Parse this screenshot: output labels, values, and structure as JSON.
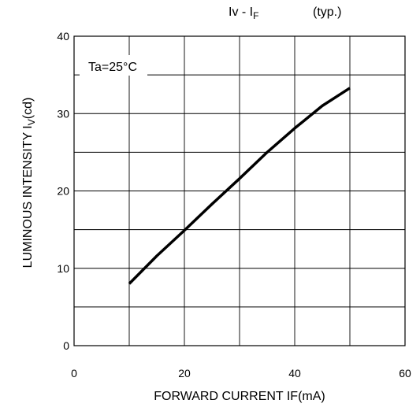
{
  "chart_data": {
    "type": "line",
    "title_main": "Iv - I",
    "title_sub": "F",
    "title_note": "(typ.)",
    "xlabel": "FORWARD CURRENT IF(mA)",
    "ylabel_main": "LUMINOUS INTENSITY   I",
    "ylabel_sub": "V",
    "ylabel_tail": "(cd)",
    "annotation": "Ta=25°C",
    "xlim": [
      0,
      60
    ],
    "ylim": [
      0,
      40
    ],
    "x_ticks": [
      0,
      20,
      40,
      60
    ],
    "y_ticks": [
      0,
      10,
      20,
      30,
      40
    ],
    "x_tick_labels": [
      "0",
      "20",
      "40",
      "60"
    ],
    "y_tick_labels": [
      "0",
      "10",
      "20",
      "30",
      "40"
    ],
    "grid": true,
    "series": [
      {
        "x": [
          10,
          15,
          20,
          25,
          30,
          35,
          40,
          45,
          50
        ],
        "y": [
          8.0,
          11.6,
          14.9,
          18.3,
          21.6,
          25.0,
          28.1,
          31.0,
          33.3
        ]
      }
    ]
  }
}
